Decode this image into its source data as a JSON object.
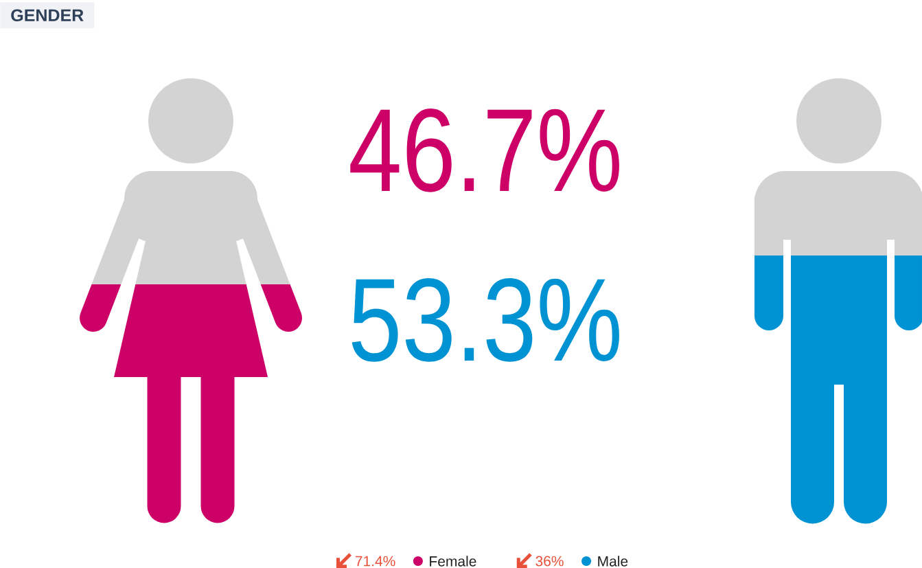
{
  "chart_data": {
    "type": "other",
    "title": "GENDER",
    "categories": [
      "Female",
      "Male"
    ],
    "values": [
      46.7,
      53.3
    ],
    "value_labels": [
      "46.7%",
      "53.3%"
    ],
    "colors": [
      "#cc0066",
      "#0093d3"
    ],
    "annotations": [
      "71.4%",
      "36%"
    ]
  }
}
